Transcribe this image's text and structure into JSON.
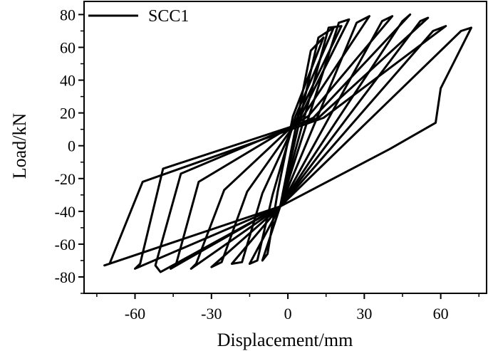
{
  "chart_data": {
    "type": "line",
    "title": "",
    "xlabel": "Displacement/mm",
    "ylabel": "Load/kN",
    "xlim": [
      -80,
      78
    ],
    "ylim": [
      -90,
      88
    ],
    "x_ticks": [
      -60,
      -30,
      0,
      30,
      60
    ],
    "x_tick_labels": [
      "-60",
      "-30",
      "0",
      "30",
      "60"
    ],
    "y_ticks": [
      -80,
      -60,
      -40,
      -20,
      0,
      20,
      40,
      60,
      80
    ],
    "y_tick_labels": [
      "-80",
      "-60",
      "-40",
      "-20",
      "0",
      "20",
      "40",
      "60",
      "80"
    ],
    "grid": false,
    "legend": {
      "position": "top-left",
      "entries": [
        "SCC1"
      ]
    },
    "series": [
      {
        "name": "SCC1",
        "color": "#000000",
        "cycles": [
          {
            "x": [
              -3,
              9,
              14,
              2,
              -4,
              -8,
              -10,
              -3
            ],
            "y": [
              -37,
              58,
              66,
              18,
              -28,
              -66,
              -70,
              -37
            ]
          },
          {
            "x": [
              -3,
              12,
              18,
              3,
              -6,
              -12,
              -15,
              -3
            ],
            "y": [
              -37,
              66,
              72,
              18,
              -30,
              -70,
              -72,
              -37
            ]
          },
          {
            "x": [
              -3,
              16,
              21,
              4,
              -10,
              -18,
              -22,
              -3
            ],
            "y": [
              -37,
              72,
              73,
              18,
              -29,
              -71,
              -72,
              -37
            ]
          },
          {
            "x": [
              -3,
              20,
              24,
              5,
              -16,
              -26,
              -30,
              -3
            ],
            "y": [
              -37,
              75,
              77,
              18,
              -28,
              -71,
              -74,
              -37
            ]
          },
          {
            "x": [
              -3,
              27,
              32,
              6,
              -25,
              -36,
              -38,
              -3
            ],
            "y": [
              -37,
              75,
              79,
              18,
              -27,
              -72,
              -75,
              -37
            ]
          },
          {
            "x": [
              -3,
              37,
              41,
              8,
              -35,
              -44,
              -46,
              -3
            ],
            "y": [
              -37,
              76,
              79,
              18,
              -22,
              -73,
              -75,
              -37
            ]
          },
          {
            "x": [
              -3,
              45,
              48,
              10,
              -42,
              -52,
              -50,
              -3
            ],
            "y": [
              -37,
              76,
              80,
              17,
              -17,
              -73,
              -77,
              -37
            ]
          },
          {
            "x": [
              -3,
              52,
              55,
              12,
              -49,
              -58,
              -60,
              -3
            ],
            "y": [
              -37,
              76,
              78,
              17,
              -14,
              -72,
              -75,
              -37
            ]
          },
          {
            "x": [
              -3,
              57,
              62,
              14,
              -57,
              -70,
              -72,
              -3
            ],
            "y": [
              -37,
              70,
              73,
              17,
              -22,
              -72,
              -73,
              -37
            ]
          },
          {
            "x": [
              -3,
              68,
              72,
              60,
              58,
              40,
              -3
            ],
            "y": [
              -37,
              70,
              72,
              35,
              14,
              -2,
              -37
            ]
          }
        ]
      }
    ]
  }
}
